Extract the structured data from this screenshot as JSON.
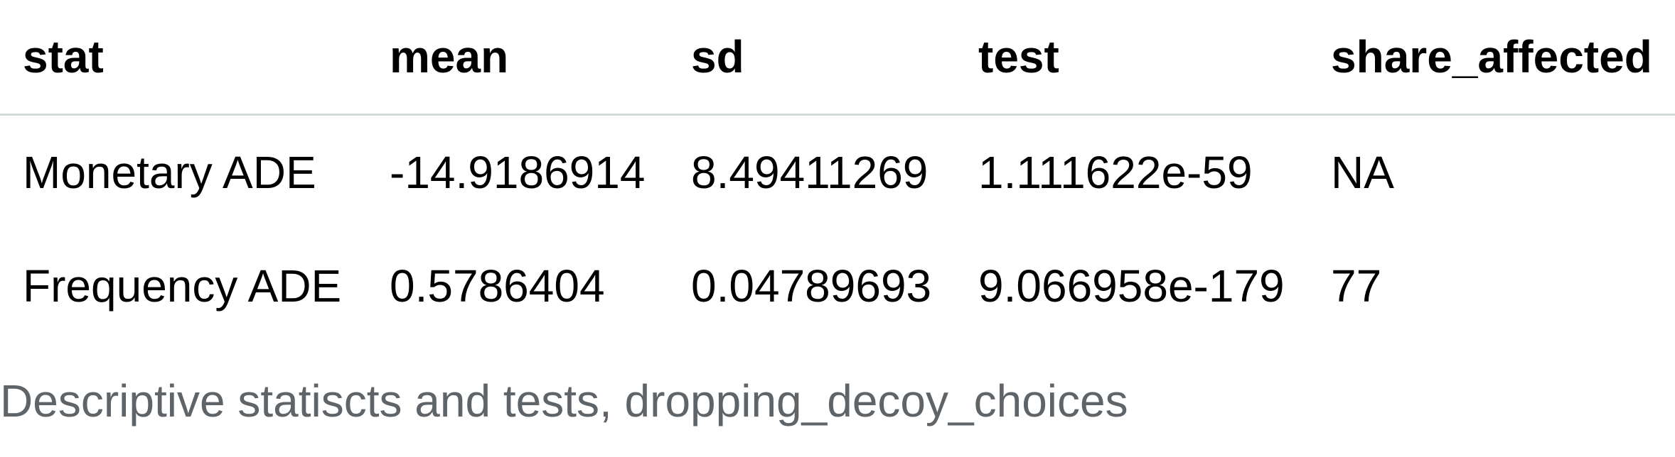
{
  "table": {
    "columns": [
      "stat",
      "mean",
      "sd",
      "test",
      "share_affected"
    ],
    "rows": [
      [
        "Monetary ADE",
        "-14.9186914",
        "8.49411269",
        "1.111622e-59",
        "NA"
      ],
      [
        "Frequency ADE",
        "0.5786404",
        "0.04789693",
        "9.066958e-179",
        "77"
      ]
    ]
  },
  "caption": "Descriptive statiscts and tests, dropping_decoy_choices"
}
